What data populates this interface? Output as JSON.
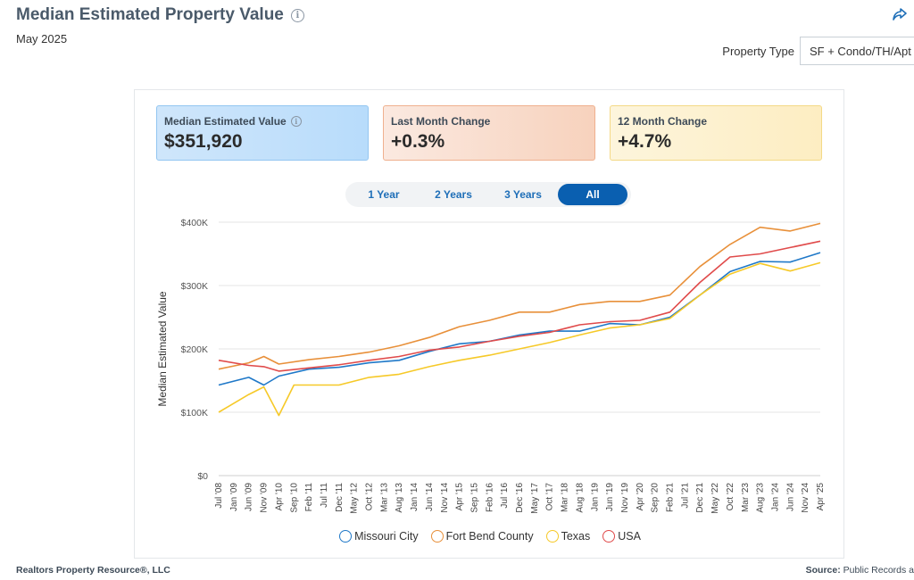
{
  "header": {
    "title": "Median Estimated Property Value",
    "subtitle": "May 2025",
    "icons": [
      "info-icon",
      "share-icon"
    ]
  },
  "property_type": {
    "label": "Property Type",
    "selected": "SF + Condo/TH/Apt"
  },
  "stats": [
    {
      "label": "Median Estimated Value",
      "value": "$351,920"
    },
    {
      "label": "Last Month Change",
      "value": "+0.3%"
    },
    {
      "label": "12 Month Change",
      "value": "+4.7%"
    }
  ],
  "range_tabs": [
    "1 Year",
    "2 Years",
    "3 Years",
    "All"
  ],
  "active_range": "All",
  "footer": {
    "left": "Realtors Property Resource®, LLC",
    "source_label": "Source:",
    "source_value": "Public Records a"
  },
  "colors": {
    "Missouri City": "#1f78c8",
    "Fort Bend County": "#e8903a",
    "Texas": "#f6c928",
    "USA": "#e04b4b"
  },
  "chart_data": {
    "type": "line",
    "title": "",
    "xlabel": "",
    "ylabel": "Median Estimated Value",
    "ylim": [
      0,
      400000
    ],
    "y_ticks": [
      "$0",
      "$100K",
      "$200K",
      "$300K",
      "$400K"
    ],
    "x_ticks": [
      "Jul '08",
      "Jan '09",
      "Jun '09",
      "Nov '09",
      "Apr '10",
      "Sep '10",
      "Feb '11",
      "Jul '11",
      "Dec '11",
      "May '12",
      "Oct '12",
      "Mar '13",
      "Aug '13",
      "Jan '14",
      "Jun '14",
      "Nov '14",
      "Apr '15",
      "Sep '15",
      "Feb '16",
      "Jul '16",
      "Dec '16",
      "May '17",
      "Oct '17",
      "Mar '18",
      "Aug '18",
      "Jan '19",
      "Jun '19",
      "Nov '19",
      "Apr '20",
      "Sep '20",
      "Feb '21",
      "Jul '21",
      "Dec '21",
      "May '22",
      "Oct '22",
      "Mar '23",
      "Aug '23",
      "Jan '24",
      "Jun '24",
      "Nov '24",
      "Apr '25"
    ],
    "grid": true,
    "legend": "bottom",
    "series": [
      {
        "name": "Missouri City",
        "x": [
          "Jul '08",
          "Jun '09",
          "Nov '09",
          "Apr '10",
          "Feb '11",
          "Dec '11",
          "Oct '12",
          "Aug '13",
          "Jun '14",
          "Apr '15",
          "Feb '16",
          "Dec '16",
          "Oct '17",
          "Aug '18",
          "Jun '19",
          "Apr '20",
          "Feb '21",
          "Dec '21",
          "Oct '22",
          "Aug '23",
          "Jun '24",
          "Apr '25"
        ],
        "values": [
          143000,
          155000,
          143000,
          157000,
          168000,
          171000,
          178000,
          182000,
          196000,
          208000,
          212000,
          222000,
          228000,
          228000,
          240000,
          238000,
          250000,
          285000,
          322000,
          338000,
          337000,
          352000
        ]
      },
      {
        "name": "Fort Bend County",
        "x": [
          "Jul '08",
          "Jun '09",
          "Nov '09",
          "Apr '10",
          "Feb '11",
          "Dec '11",
          "Oct '12",
          "Aug '13",
          "Jun '14",
          "Apr '15",
          "Feb '16",
          "Dec '16",
          "Oct '17",
          "Aug '18",
          "Jun '19",
          "Apr '20",
          "Feb '21",
          "Dec '21",
          "Oct '22",
          "Aug '23",
          "Jun '24",
          "Apr '25"
        ],
        "values": [
          168000,
          178000,
          188000,
          176000,
          183000,
          188000,
          195000,
          205000,
          218000,
          235000,
          245000,
          258000,
          258000,
          270000,
          275000,
          275000,
          285000,
          330000,
          365000,
          392000,
          386000,
          398000
        ]
      },
      {
        "name": "Texas",
        "x": [
          "Jul '08",
          "Jun '09",
          "Nov '09",
          "Apr '10",
          "Sep '10",
          "Feb '11",
          "Dec '11",
          "Oct '12",
          "Aug '13",
          "Jun '14",
          "Apr '15",
          "Feb '16",
          "Dec '16",
          "Oct '17",
          "Aug '18",
          "Jun '19",
          "Apr '20",
          "Feb '21",
          "Dec '21",
          "Oct '22",
          "Aug '23",
          "Jun '24",
          "Apr '25"
        ],
        "values": [
          100000,
          128000,
          140000,
          95000,
          143000,
          143000,
          143000,
          155000,
          160000,
          172000,
          182000,
          190000,
          200000,
          210000,
          222000,
          233000,
          238000,
          248000,
          285000,
          318000,
          335000,
          323000,
          336000
        ]
      },
      {
        "name": "USA",
        "x": [
          "Jul '08",
          "Jun '09",
          "Nov '09",
          "Apr '10",
          "Feb '11",
          "Dec '11",
          "Oct '12",
          "Aug '13",
          "Jun '14",
          "Apr '15",
          "Feb '16",
          "Dec '16",
          "Oct '17",
          "Aug '18",
          "Jun '19",
          "Apr '20",
          "Feb '21",
          "Dec '21",
          "Oct '22",
          "Aug '23",
          "Jun '24",
          "Apr '25"
        ],
        "values": [
          182000,
          174000,
          172000,
          165000,
          170000,
          175000,
          182000,
          188000,
          198000,
          203000,
          212000,
          220000,
          226000,
          238000,
          243000,
          245000,
          258000,
          305000,
          345000,
          350000,
          360000,
          370000
        ]
      }
    ]
  }
}
